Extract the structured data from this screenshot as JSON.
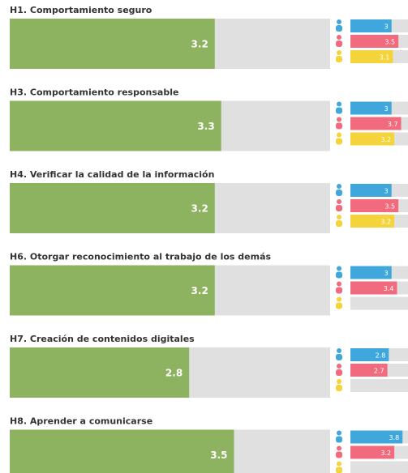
{
  "chart_data": [
    {
      "type": "bar",
      "title": "H1. Comportamiento seguro",
      "value": 3.2,
      "xlim": [
        0,
        5
      ],
      "color": "#8db360",
      "groups": {
        "colors": [
          "#3fa7dc",
          "#f26a7e",
          "#f5d33a"
        ],
        "values": [
          3,
          3.5,
          3.1
        ],
        "xlim": [
          0,
          4.2
        ]
      }
    },
    {
      "type": "bar",
      "title": "H3. Comportamiento responsable",
      "value": 3.3,
      "xlim": [
        0,
        5
      ],
      "color": "#8db360",
      "groups": {
        "colors": [
          "#3fa7dc",
          "#f26a7e",
          "#f5d33a"
        ],
        "values": [
          3,
          3.7,
          3.2
        ],
        "xlim": [
          0,
          4.2
        ]
      }
    },
    {
      "type": "bar",
      "title": "H4. Verificar la calidad de la información",
      "value": 3.2,
      "xlim": [
        0,
        5
      ],
      "color": "#8db360",
      "groups": {
        "colors": [
          "#3fa7dc",
          "#f26a7e",
          "#f5d33a"
        ],
        "values": [
          3,
          3.5,
          3.2
        ],
        "xlim": [
          0,
          4.2
        ]
      }
    },
    {
      "type": "bar",
      "title": "H6. Otorgar reconocimiento al trabajo de los demás",
      "value": 3.2,
      "xlim": [
        0,
        5
      ],
      "color": "#8db360",
      "groups": {
        "colors": [
          "#3fa7dc",
          "#f26a7e",
          "#f5d33a"
        ],
        "values": [
          3,
          3.4,
          null
        ],
        "xlim": [
          0,
          4.2
        ]
      }
    },
    {
      "type": "bar",
      "title": "H7. Creación de contenidos digitales",
      "value": 2.8,
      "xlim": [
        0,
        5
      ],
      "color": "#8db360",
      "groups": {
        "colors": [
          "#3fa7dc",
          "#f26a7e",
          "#f5d33a"
        ],
        "values": [
          2.8,
          2.7,
          null
        ],
        "xlim": [
          0,
          4.2
        ]
      }
    },
    {
      "type": "bar",
      "title": "H8. Aprender a comunicarse",
      "value": 3.5,
      "xlim": [
        0,
        5
      ],
      "color": "#8db360",
      "groups": {
        "colors": [
          "#3fa7dc",
          "#f26a7e",
          "#f5d33a"
        ],
        "values": [
          3.8,
          3.2,
          null
        ],
        "xlim": [
          0,
          4.2
        ]
      }
    }
  ]
}
